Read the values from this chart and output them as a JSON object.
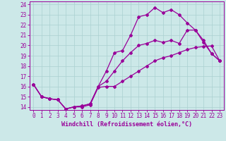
{
  "xlabel": "Windchill (Refroidissement éolien,°C)",
  "background_color": "#cce8e8",
  "line_color": "#990099",
  "xlim": [
    -0.5,
    23.5
  ],
  "ylim": [
    13.7,
    24.3
  ],
  "xticks": [
    0,
    1,
    2,
    3,
    4,
    5,
    6,
    7,
    8,
    9,
    10,
    11,
    12,
    13,
    14,
    15,
    16,
    17,
    18,
    19,
    20,
    21,
    22,
    23
  ],
  "yticks": [
    14,
    15,
    16,
    17,
    18,
    19,
    20,
    21,
    22,
    23,
    24
  ],
  "line1_x": [
    0,
    1,
    2,
    3,
    4,
    5,
    6,
    7,
    8,
    9,
    10,
    11,
    12,
    13,
    14,
    15,
    16,
    17,
    18,
    19,
    20,
    21,
    22,
    23
  ],
  "line1_y": [
    16.2,
    15.0,
    14.8,
    14.7,
    13.8,
    14.0,
    14.0,
    14.2,
    15.9,
    16.0,
    16.0,
    16.5,
    17.0,
    17.5,
    18.0,
    18.5,
    18.8,
    19.0,
    19.3,
    19.6,
    19.8,
    19.9,
    19.95,
    18.5
  ],
  "line2_x": [
    0,
    1,
    2,
    3,
    4,
    5,
    6,
    7,
    8,
    9,
    10,
    11,
    12,
    13,
    14,
    15,
    16,
    17,
    18,
    19,
    20,
    21,
    22,
    23
  ],
  "line2_y": [
    16.2,
    15.0,
    14.8,
    14.7,
    13.8,
    14.0,
    14.1,
    14.3,
    16.0,
    17.5,
    19.3,
    19.5,
    21.0,
    22.8,
    23.0,
    23.7,
    23.2,
    23.5,
    23.0,
    22.2,
    21.5,
    20.3,
    19.2,
    18.5
  ],
  "line3_x": [
    0,
    1,
    2,
    3,
    4,
    5,
    6,
    7,
    8,
    9,
    10,
    11,
    12,
    13,
    14,
    15,
    16,
    17,
    18,
    19,
    20,
    21,
    22,
    23
  ],
  "line3_y": [
    16.2,
    15.0,
    14.8,
    14.7,
    13.8,
    14.0,
    14.1,
    14.3,
    16.0,
    16.5,
    17.5,
    18.5,
    19.3,
    20.0,
    20.2,
    20.5,
    20.3,
    20.5,
    20.2,
    21.5,
    21.5,
    20.5,
    19.2,
    18.5
  ],
  "grid_color": "#aad0d0",
  "marker": "D",
  "marker_size": 2,
  "linewidth": 0.9,
  "xlabel_fontsize": 6,
  "tick_fontsize": 5.5
}
